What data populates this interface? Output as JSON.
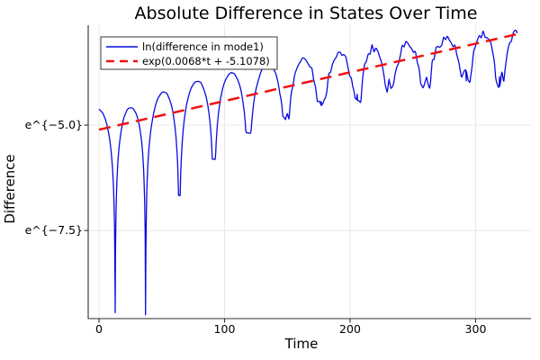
{
  "chart_data": {
    "type": "line",
    "title": "Absolute Difference in States Over Time",
    "xlabel": "Time",
    "ylabel": "Difference",
    "y_scale": "log-natural (tick labels shown as powers of e)",
    "grid": true,
    "legend_position": "top-left",
    "xlim": [
      -8.6,
      344.1
    ],
    "ylim_ln": [
      -9.59,
      -2.63
    ],
    "x_ticks": [
      {
        "v": 0,
        "label": "0"
      },
      {
        "v": 100,
        "label": "100"
      },
      {
        "v": 200,
        "label": "200"
      },
      {
        "v": 300,
        "label": "300"
      }
    ],
    "y_ticks": [
      {
        "v": -5.0,
        "label": "e^{−5.0}"
      },
      {
        "v": -7.5,
        "label": "e^{−7.5}"
      }
    ],
    "x_data_range": [
      0,
      333
    ],
    "series": [
      {
        "name": "ln(difference in mode1)",
        "color": "#0a0ae0",
        "style": "solid",
        "width": 1.3,
        "model": "ln|osc|: env(t) + ln|sin(pi*(t-cusp_k)/(cusp_k1-cusp_k))|, floored at per-cusp minima, with small jitter growing after t~130",
        "envelope_points_t_ln": [
          [
            0,
            -4.62
          ],
          [
            27,
            -4.58
          ],
          [
            54,
            -4.17
          ],
          [
            82,
            -3.92
          ],
          [
            109,
            -3.74
          ],
          [
            137,
            -3.55
          ],
          [
            164,
            -3.42
          ],
          [
            191,
            -3.33
          ],
          [
            219,
            -3.16
          ],
          [
            246,
            -3.03
          ],
          [
            274,
            -2.95
          ],
          [
            301,
            -2.87
          ],
          [
            333,
            -2.82
          ]
        ],
        "cusps_t_ln": [
          [
            12.9,
            -9.45
          ],
          [
            37.1,
            -9.5
          ],
          [
            64,
            -6.67
          ],
          [
            91.5,
            -5.81
          ],
          [
            119,
            -5.19
          ],
          [
            149,
            -4.81
          ],
          [
            177,
            -4.44
          ],
          [
            205.7,
            -4.27
          ],
          [
            231.5,
            -4.0
          ],
          [
            259.5,
            -4.0
          ],
          [
            292.5,
            -3.95
          ],
          [
            319,
            -3.85
          ]
        ],
        "noise": {
          "start_t": 120,
          "max_amp": 0.115
        }
      },
      {
        "name": "exp(0.0068*t + -5.1078)",
        "color": "#f01010",
        "style": "dashed",
        "width": 2.5,
        "slope": 0.0068,
        "intercept": -5.1078,
        "t_start": 0,
        "t_end": 333
      }
    ]
  }
}
